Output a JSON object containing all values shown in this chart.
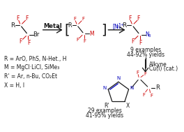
{
  "bg_color": "#ffffff",
  "black": "#1a1a1a",
  "red": "#cc0000",
  "blue": "#0000bb",
  "fig_width": 2.64,
  "fig_height": 1.89,
  "dpi": 100,
  "examples_right_text1": "9 examples",
  "examples_right_text2": "44-92% yields",
  "examples_bottom_text1": "29 examples",
  "examples_bottom_text2": "41-95% yields",
  "legend_lines": [
    "R = ArO, PhS, N-Het., H",
    "M = MgCl·LiCl, SiMe₃",
    "R' = Ar, n-Bu, CO₂Et",
    "X = H, I"
  ]
}
